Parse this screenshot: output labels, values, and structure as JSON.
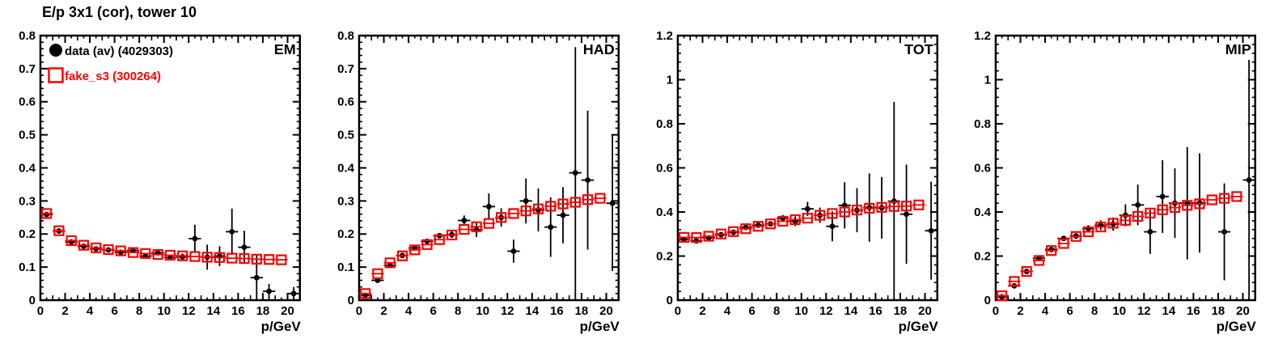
{
  "title": "E/p 3x1 (cor), tower 10",
  "colors": {
    "data_series": "#000000",
    "fake_series": "#ff0000",
    "frame": "#000000",
    "background": "#ffffff"
  },
  "legend": [
    {
      "marker": "filled-circle-icon",
      "label": "data (av) (4029303)",
      "color": "#000000"
    },
    {
      "marker": "open-square-icon",
      "label": "fake_s3 (300264)",
      "color": "#ff0000"
    }
  ],
  "x_axis": {
    "title": "p/GeV",
    "min": 0,
    "max": 21,
    "major_step": 2,
    "minor_step": 0.5,
    "ticks": [
      {
        "v": 0,
        "label": "0"
      },
      {
        "v": 2,
        "label": "2"
      },
      {
        "v": 4,
        "label": "4"
      },
      {
        "v": 6,
        "label": "6"
      },
      {
        "v": 8,
        "label": "8"
      },
      {
        "v": 10,
        "label": "10"
      },
      {
        "v": 12,
        "label": "12"
      },
      {
        "v": 14,
        "label": "14"
      },
      {
        "v": 16,
        "label": "16"
      },
      {
        "v": 18,
        "label": "18"
      },
      {
        "v": 20,
        "label": "20"
      }
    ]
  },
  "chart_data": [
    {
      "id": "em",
      "type": "scatter",
      "label": "EM",
      "y_axis": {
        "min": 0,
        "max": 0.8,
        "major": 0.1,
        "minor": 0.02,
        "ticks": [
          {
            "v": 0,
            "label": "0"
          },
          {
            "v": 0.1,
            "label": "0.1"
          },
          {
            "v": 0.2,
            "label": "0.2"
          },
          {
            "v": 0.3,
            "label": "0.3"
          },
          {
            "v": 0.4,
            "label": "0.4"
          },
          {
            "v": 0.5,
            "label": "0.5"
          },
          {
            "v": 0.6,
            "label": "0.6"
          },
          {
            "v": 0.7,
            "label": "0.7"
          },
          {
            "v": 0.8,
            "label": "0.8"
          }
        ]
      },
      "series": [
        {
          "name": "data (av)",
          "marker": "filled-circle",
          "color": "#000000",
          "xerr": 0.5,
          "x": [
            0.5,
            1.5,
            2.5,
            3.5,
            4.5,
            5.5,
            6.5,
            7.5,
            8.5,
            9.5,
            10.5,
            11.5,
            12.5,
            13.5,
            14.5,
            15.5,
            16.5,
            17.5,
            18.5,
            20.5
          ],
          "y": [
            0.259,
            0.209,
            0.176,
            0.163,
            0.155,
            0.152,
            0.145,
            0.15,
            0.133,
            0.143,
            0.129,
            0.131,
            0.186,
            0.13,
            0.133,
            0.207,
            0.16,
            0.068,
            0.027,
            0.02
          ],
          "yerr": [
            0.006,
            0.004,
            0.003,
            0.003,
            0.003,
            0.003,
            0.003,
            0.004,
            0.005,
            0.006,
            0.008,
            0.01,
            0.042,
            0.038,
            0.03,
            0.07,
            0.05,
            0.068,
            0.022,
            0.02
          ]
        },
        {
          "name": "fake_s3",
          "marker": "open-square",
          "color": "#ff0000",
          "xerr": 0.5,
          "x": [
            0.5,
            1.5,
            2.5,
            3.5,
            4.5,
            5.5,
            6.5,
            7.5,
            8.5,
            9.5,
            10.5,
            11.5,
            12.5,
            13.5,
            14.5,
            15.5,
            16.5,
            17.5,
            18.5,
            19.5
          ],
          "y": [
            0.262,
            0.21,
            0.18,
            0.166,
            0.158,
            0.153,
            0.149,
            0.144,
            0.141,
            0.138,
            0.136,
            0.134,
            0.132,
            0.13,
            0.129,
            0.127,
            0.126,
            0.124,
            0.123,
            0.122
          ]
        }
      ]
    },
    {
      "id": "had",
      "type": "scatter",
      "label": "HAD",
      "y_axis": {
        "min": 0,
        "max": 0.8,
        "major": 0.1,
        "minor": 0.02,
        "ticks": [
          {
            "v": 0,
            "label": "0"
          },
          {
            "v": 0.1,
            "label": "0.1"
          },
          {
            "v": 0.2,
            "label": "0.2"
          },
          {
            "v": 0.3,
            "label": "0.3"
          },
          {
            "v": 0.4,
            "label": "0.4"
          },
          {
            "v": 0.5,
            "label": "0.5"
          },
          {
            "v": 0.6,
            "label": "0.6"
          },
          {
            "v": 0.7,
            "label": "0.7"
          },
          {
            "v": 0.8,
            "label": "0.8"
          }
        ]
      },
      "series": [
        {
          "name": "data (av)",
          "marker": "filled-circle",
          "color": "#000000",
          "xerr": 0.5,
          "x": [
            0.5,
            1.5,
            2.5,
            3.5,
            4.5,
            5.5,
            6.5,
            7.5,
            8.5,
            9.5,
            10.5,
            11.5,
            12.5,
            13.5,
            14.5,
            15.5,
            16.5,
            17.5,
            18.5,
            20.5
          ],
          "y": [
            0.015,
            0.06,
            0.105,
            0.135,
            0.158,
            0.178,
            0.195,
            0.198,
            0.241,
            0.213,
            0.283,
            0.25,
            0.148,
            0.3,
            0.273,
            0.221,
            0.257,
            0.385,
            0.363,
            0.293
          ],
          "yerr": [
            0.003,
            0.004,
            0.005,
            0.005,
            0.006,
            0.007,
            0.008,
            0.01,
            0.015,
            0.022,
            0.04,
            0.028,
            0.035,
            0.068,
            0.065,
            0.09,
            0.085,
            0.38,
            0.21,
            0.205
          ]
        },
        {
          "name": "fake_s3",
          "marker": "open-square",
          "color": "#ff0000",
          "xerr": 0.5,
          "x": [
            0.5,
            1.5,
            2.5,
            3.5,
            4.5,
            5.5,
            6.5,
            7.5,
            8.5,
            9.5,
            10.5,
            11.5,
            12.5,
            13.5,
            14.5,
            15.5,
            16.5,
            17.5,
            18.5,
            19.5
          ],
          "y": [
            0.02,
            0.08,
            0.113,
            0.134,
            0.152,
            0.168,
            0.183,
            0.197,
            0.214,
            0.222,
            0.232,
            0.25,
            0.262,
            0.27,
            0.276,
            0.284,
            0.291,
            0.296,
            0.304,
            0.308
          ]
        }
      ]
    },
    {
      "id": "tot",
      "type": "scatter",
      "label": "TOT",
      "y_axis": {
        "min": 0,
        "max": 1.2,
        "major": 0.2,
        "minor": 0.04,
        "ticks": [
          {
            "v": 0,
            "label": "0"
          },
          {
            "v": 0.2,
            "label": "0.2"
          },
          {
            "v": 0.4,
            "label": "0.4"
          },
          {
            "v": 0.6,
            "label": "0.6"
          },
          {
            "v": 0.8,
            "label": "0.8"
          },
          {
            "v": 1,
            "label": "1"
          },
          {
            "v": 1.2,
            "label": "1.2"
          }
        ]
      },
      "series": [
        {
          "name": "data (av)",
          "marker": "filled-circle",
          "color": "#000000",
          "xerr": 0.5,
          "x": [
            0.5,
            1.5,
            2.5,
            3.5,
            4.5,
            5.5,
            6.5,
            7.5,
            8.5,
            9.5,
            10.5,
            11.5,
            12.5,
            13.5,
            14.5,
            15.5,
            16.5,
            17.5,
            18.5,
            20.5
          ],
          "y": [
            0.276,
            0.269,
            0.283,
            0.297,
            0.308,
            0.33,
            0.34,
            0.346,
            0.372,
            0.358,
            0.414,
            0.385,
            0.335,
            0.43,
            0.408,
            0.42,
            0.419,
            0.449,
            0.39,
            0.315
          ],
          "yerr": [
            0.005,
            0.005,
            0.005,
            0.006,
            0.006,
            0.007,
            0.008,
            0.01,
            0.014,
            0.022,
            0.032,
            0.035,
            0.068,
            0.105,
            0.1,
            0.155,
            0.14,
            0.45,
            0.225,
            0.222
          ]
        },
        {
          "name": "fake_s3",
          "marker": "open-square",
          "color": "#ff0000",
          "xerr": 0.5,
          "x": [
            0.5,
            1.5,
            2.5,
            3.5,
            4.5,
            5.5,
            6.5,
            7.5,
            8.5,
            9.5,
            10.5,
            11.5,
            12.5,
            13.5,
            14.5,
            15.5,
            16.5,
            17.5,
            18.5,
            19.5
          ],
          "y": [
            0.285,
            0.284,
            0.29,
            0.3,
            0.311,
            0.324,
            0.335,
            0.346,
            0.358,
            0.365,
            0.372,
            0.385,
            0.393,
            0.4,
            0.409,
            0.417,
            0.421,
            0.425,
            0.427,
            0.432
          ]
        }
      ]
    },
    {
      "id": "mip",
      "type": "scatter",
      "label": "MIP",
      "y_axis": {
        "min": 0,
        "max": 1.2,
        "major": 0.2,
        "minor": 0.04,
        "ticks": [
          {
            "v": 0,
            "label": "0"
          },
          {
            "v": 0.2,
            "label": "0.2"
          },
          {
            "v": 0.4,
            "label": "0.4"
          },
          {
            "v": 0.6,
            "label": "0.6"
          },
          {
            "v": 0.8,
            "label": "0.8"
          },
          {
            "v": 1,
            "label": "1"
          },
          {
            "v": 1.2,
            "label": "1.2"
          }
        ]
      },
      "series": [
        {
          "name": "data (av)",
          "marker": "filled-circle",
          "color": "#000000",
          "xerr": 0.5,
          "x": [
            0.5,
            1.5,
            2.5,
            3.5,
            4.5,
            5.5,
            6.5,
            7.5,
            8.5,
            9.5,
            10.5,
            11.5,
            12.5,
            13.5,
            14.5,
            15.5,
            16.5,
            18.5,
            20.5
          ],
          "y": [
            0.015,
            0.065,
            0.13,
            0.19,
            0.23,
            0.28,
            0.291,
            0.325,
            0.34,
            0.345,
            0.385,
            0.432,
            0.31,
            0.47,
            0.44,
            0.44,
            0.441,
            0.31,
            0.545
          ],
          "yerr": [
            0.003,
            0.005,
            0.006,
            0.007,
            0.008,
            0.01,
            0.012,
            0.015,
            0.022,
            0.03,
            0.05,
            0.092,
            0.1,
            0.165,
            0.158,
            0.255,
            0.225,
            0.22,
            0.545
          ]
        },
        {
          "name": "fake_s3",
          "marker": "open-square",
          "color": "#ff0000",
          "xerr": 0.5,
          "x": [
            0.5,
            1.5,
            2.5,
            3.5,
            4.5,
            5.5,
            6.5,
            7.5,
            8.5,
            9.5,
            10.5,
            11.5,
            12.5,
            13.5,
            14.5,
            15.5,
            16.5,
            17.5,
            18.5,
            19.5
          ],
          "y": [
            0.02,
            0.085,
            0.13,
            0.18,
            0.225,
            0.257,
            0.289,
            0.31,
            0.332,
            0.349,
            0.362,
            0.38,
            0.395,
            0.41,
            0.42,
            0.43,
            0.437,
            0.455,
            0.462,
            0.47
          ]
        }
      ]
    }
  ]
}
